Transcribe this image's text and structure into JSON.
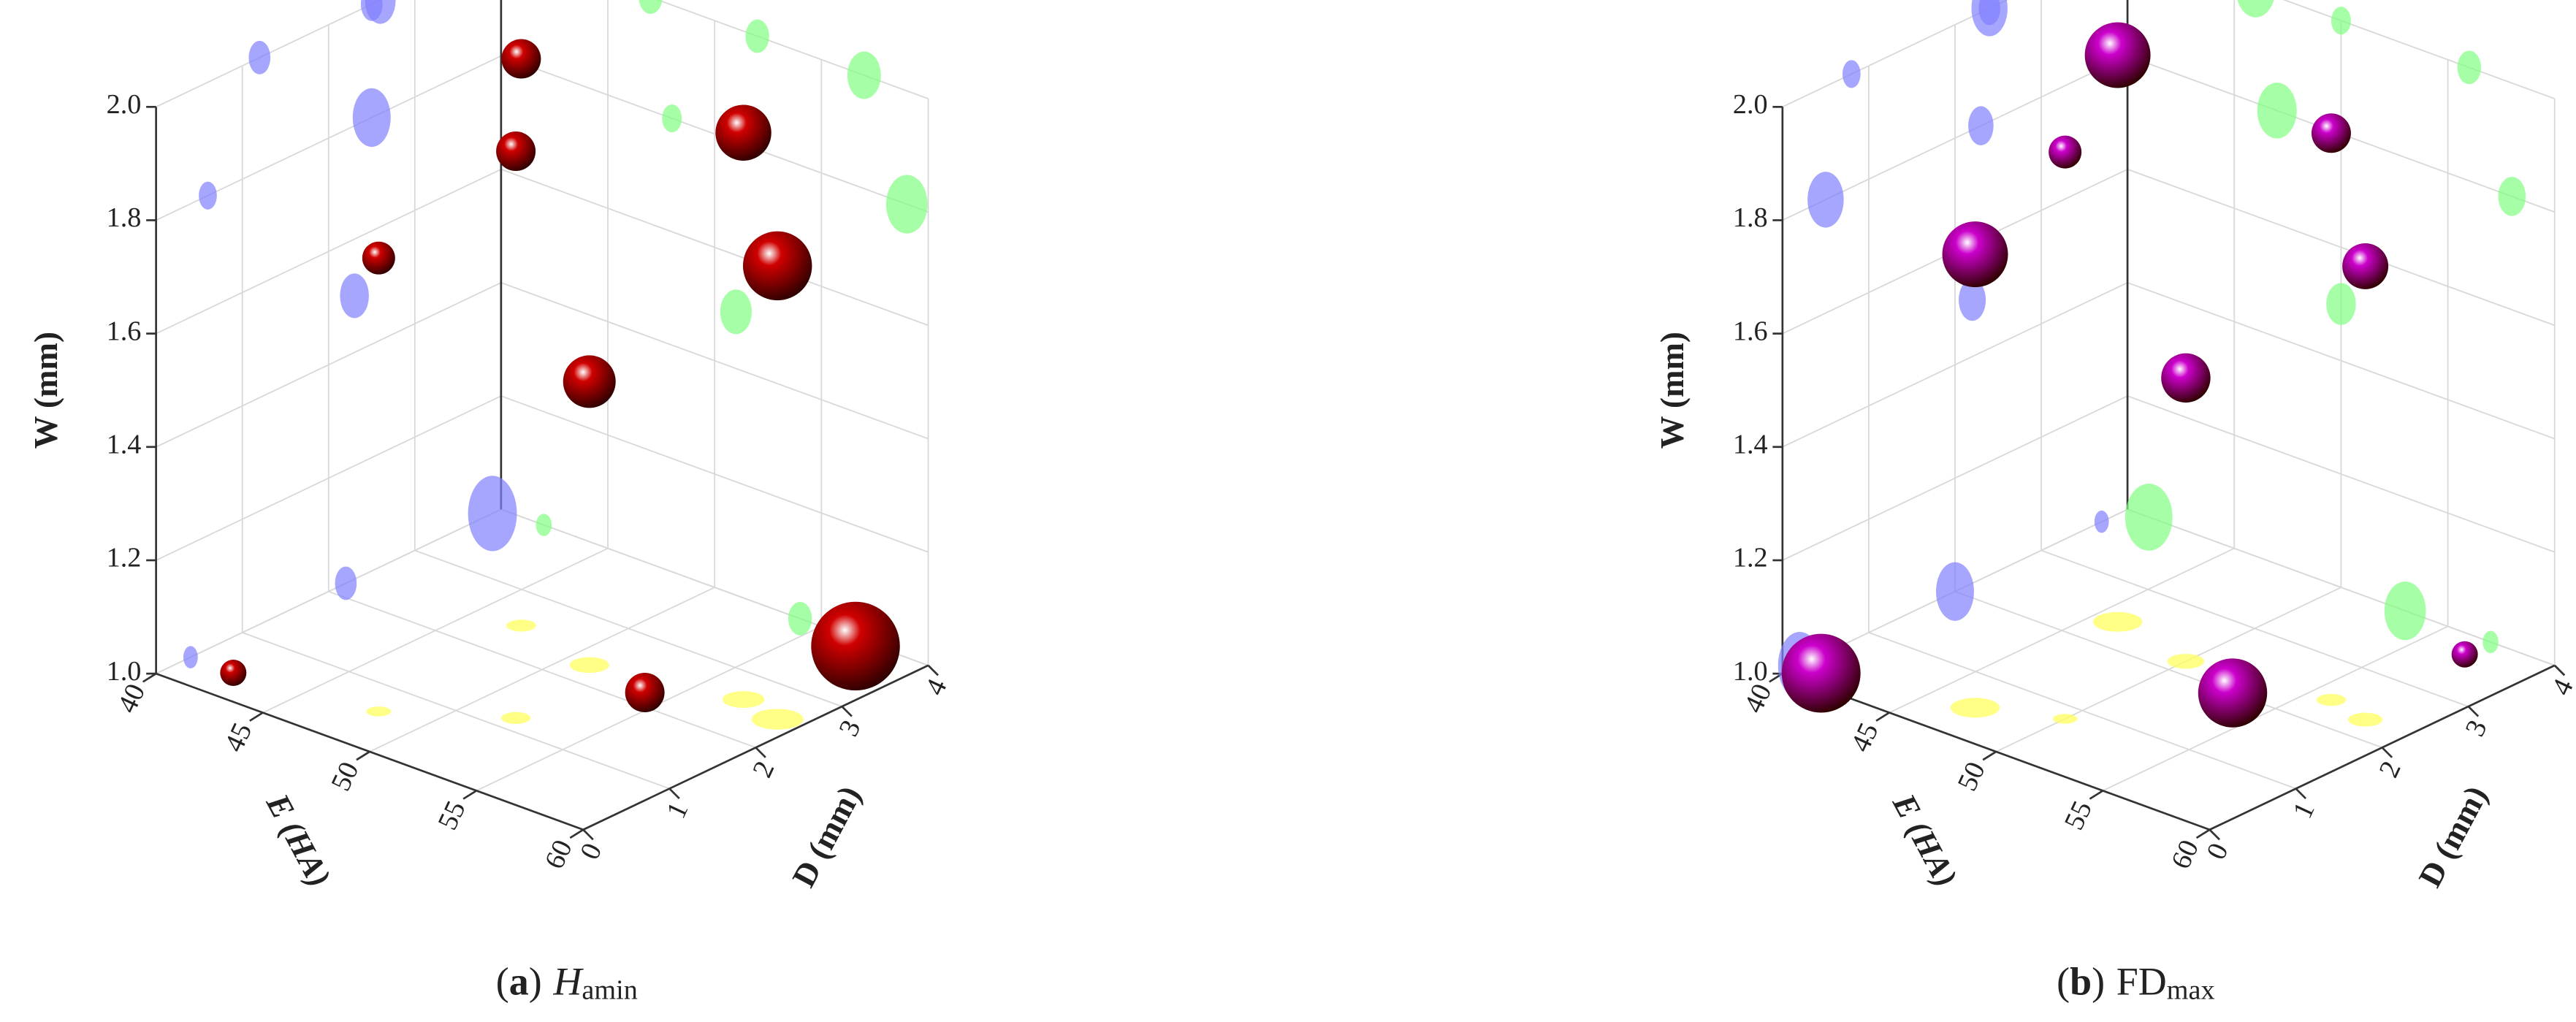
{
  "chart_data": [
    {
      "type": "scatter3d",
      "caption_parts": [
        {
          "text": "(",
          "style": "normal"
        },
        {
          "text": "a",
          "style": "bold"
        },
        {
          "text": ")",
          "style": "normal"
        },
        {
          "text": "H",
          "style": "italic"
        },
        {
          "text": "amin",
          "style": "sub"
        }
      ],
      "x_label": "E (HA)",
      "y_label": "D (mm)",
      "z_label": "W (mm)",
      "x": [
        42,
        57,
        54,
        51,
        48,
        52,
        47,
        57,
        59
      ],
      "y": [
        0.4,
        3.9,
        2.2,
        2.3,
        0.6,
        1.2,
        2.5,
        2.6,
        2.5
      ],
      "z": [
        1.0,
        1.0,
        1.0,
        1.5,
        1.8,
        2.0,
        2.0,
        2.0,
        1.8
      ],
      "size": [
        8,
        27,
        12,
        16,
        10,
        12,
        12,
        17,
        21
      ],
      "color": "#d00000",
      "shadow_colors": {
        "x_wall": "#8080ff",
        "y_wall": "#80ff80",
        "floor": "#ffff66"
      },
      "xlim": [
        40,
        60
      ],
      "xticks": [
        40,
        45,
        50,
        55,
        60
      ],
      "ylim": [
        0,
        4
      ],
      "yticks": [
        0,
        1,
        2,
        3,
        4
      ],
      "zlim": [
        1,
        2
      ],
      "zticks": [
        {
          "value": 1,
          "label": "1.0"
        },
        {
          "value": 1.2,
          "label": "1.2"
        },
        {
          "value": 1.4,
          "label": "1.4"
        },
        {
          "value": 1.6,
          "label": "1.6"
        },
        {
          "value": 1.8,
          "label": "1.8"
        },
        {
          "value": 2,
          "label": "2.0"
        }
      ],
      "grid": true
    },
    {
      "type": "scatter3d",
      "caption_parts": [
        {
          "text": "(",
          "style": "normal"
        },
        {
          "text": "b",
          "style": "bold"
        },
        {
          "text": ")",
          "style": "normal"
        },
        {
          "text": "FD",
          "style": "normal"
        },
        {
          "text": "max",
          "style": "sub"
        }
      ],
      "x_label": "E (HA)",
      "y_label": "D (mm)",
      "z_label": "W (mm)",
      "x": [
        46,
        56,
        50,
        47,
        58,
        50,
        41,
        53,
        57
      ],
      "y": [
        2.4,
        2.4,
        0.8,
        0.5,
        2.3,
        2.2,
        0.2,
        2.0,
        3.7
      ],
      "z": [
        2.0,
        2.0,
        2.0,
        1.8,
        1.8,
        1.5,
        1.0,
        1.0,
        1.0
      ],
      "size": [
        20,
        12,
        10,
        20,
        14,
        15,
        24,
        21,
        8
      ],
      "color": "#cc00cc",
      "shadow_colors": {
        "x_wall": "#8080ff",
        "y_wall": "#80ff80",
        "floor": "#ffff66"
      },
      "xlim": [
        40,
        60
      ],
      "xticks": [
        40,
        45,
        50,
        55,
        60
      ],
      "ylim": [
        0,
        4
      ],
      "yticks": [
        0,
        1,
        2,
        3,
        4
      ],
      "zlim": [
        1,
        2
      ],
      "zticks": [
        {
          "value": 1,
          "label": "1.0"
        },
        {
          "value": 1.2,
          "label": "1.2"
        },
        {
          "value": 1.4,
          "label": "1.4"
        },
        {
          "value": 1.6,
          "label": "1.6"
        },
        {
          "value": 1.8,
          "label": "1.8"
        },
        {
          "value": 2,
          "label": "2.0"
        }
      ],
      "grid": true
    }
  ]
}
